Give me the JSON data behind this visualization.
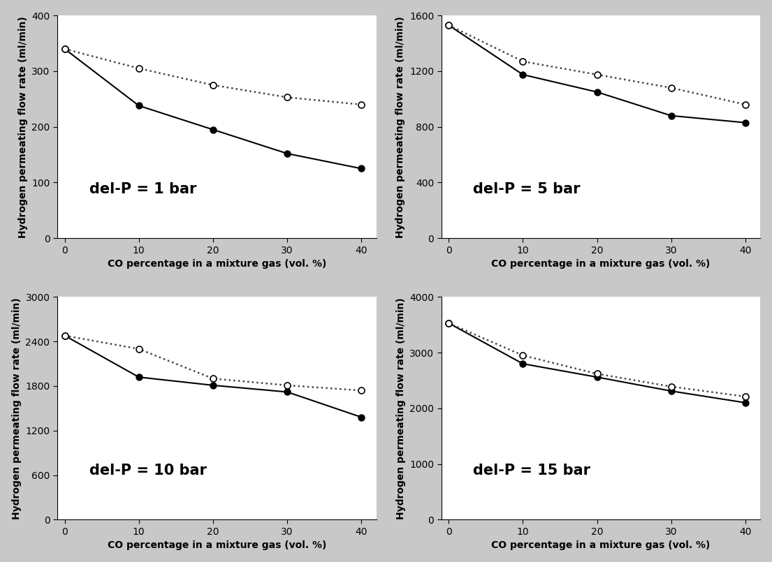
{
  "subplots": [
    {
      "label": "del-P = 1 bar",
      "ylim": [
        0,
        400
      ],
      "yticks": [
        0,
        100,
        200,
        300,
        400
      ],
      "solid_x": [
        0,
        10,
        20,
        30,
        40
      ],
      "solid_y": [
        340,
        238,
        195,
        152,
        125
      ],
      "dotted_x": [
        0,
        10,
        20,
        30,
        40
      ],
      "dotted_y": [
        340,
        305,
        275,
        253,
        240
      ]
    },
    {
      "label": "del-P = 5 bar",
      "ylim": [
        0,
        1600
      ],
      "yticks": [
        0,
        400,
        800,
        1200,
        1600
      ],
      "solid_x": [
        0,
        10,
        20,
        30,
        40
      ],
      "solid_y": [
        1530,
        1175,
        1050,
        880,
        830
      ],
      "dotted_x": [
        0,
        10,
        20,
        30,
        40
      ],
      "dotted_y": [
        1530,
        1270,
        1175,
        1080,
        960
      ]
    },
    {
      "label": "del-P = 10 bar",
      "ylim": [
        0,
        3000
      ],
      "yticks": [
        0,
        600,
        1200,
        1800,
        2400,
        3000
      ],
      "solid_x": [
        0,
        10,
        20,
        30,
        40
      ],
      "solid_y": [
        2480,
        1920,
        1810,
        1720,
        1380
      ],
      "dotted_x": [
        0,
        10,
        20,
        30,
        40
      ],
      "dotted_y": [
        2480,
        2300,
        1900,
        1810,
        1740
      ]
    },
    {
      "label": "del-P = 15 bar",
      "ylim": [
        0,
        4000
      ],
      "yticks": [
        0,
        1000,
        2000,
        3000,
        4000
      ],
      "solid_x": [
        0,
        10,
        20,
        30,
        40
      ],
      "solid_y": [
        3530,
        2800,
        2560,
        2310,
        2100
      ],
      "dotted_x": [
        0,
        10,
        20,
        30,
        40
      ],
      "dotted_y": [
        3530,
        2950,
        2620,
        2390,
        2210
      ]
    }
  ],
  "xlabel": "CO percentage in a mixture gas (vol. %)",
  "ylabel": "Hydrogen permeating flow rate (ml/min)",
  "xticks": [
    0,
    10,
    20,
    30,
    40
  ],
  "label_fontsize": 10,
  "annot_fontsize": 15,
  "tick_fontsize": 10,
  "solid_color": "#000000",
  "dotted_color": "#444444",
  "bg_color": "#ffffff",
  "fig_bg_color": "#c8c8c8"
}
